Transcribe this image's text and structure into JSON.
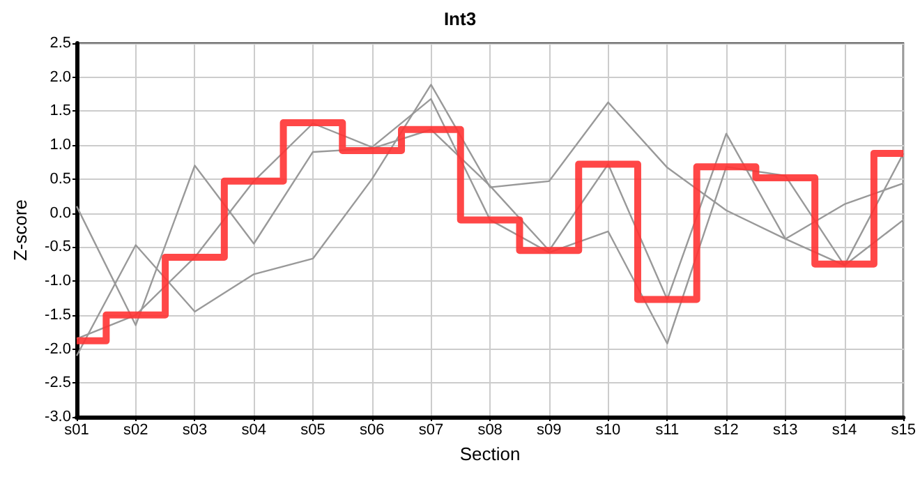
{
  "chart_data": {
    "type": "line",
    "title": "Int3",
    "xlabel": "Section",
    "ylabel": "Z-score",
    "categories": [
      "s01",
      "s02",
      "s03",
      "s04",
      "s05",
      "s06",
      "s07",
      "s08",
      "s09",
      "s10",
      "s11",
      "s12",
      "s13",
      "s14",
      "s15"
    ],
    "series": [
      {
        "color": "#999999",
        "values": [
          -2.1,
          -0.47,
          -1.45,
          -0.9,
          -0.67,
          0.5,
          1.89,
          0.38,
          0.47,
          1.63,
          0.67,
          0.04,
          -0.38,
          0.13,
          0.44
        ]
      },
      {
        "color": "#999999",
        "values": [
          0.1,
          -1.65,
          0.7,
          -0.45,
          0.9,
          0.95,
          1.23,
          0.4,
          -0.55,
          0.72,
          -1.27,
          1.17,
          -0.38,
          -0.77,
          -0.1
        ]
      },
      {
        "color": "#999999",
        "values": [
          -1.85,
          -1.5,
          -0.65,
          0.47,
          1.32,
          0.97,
          1.68,
          -0.1,
          -0.58,
          -0.27,
          -1.92,
          0.68,
          0.55,
          -0.77,
          0.88
        ]
      },
      {
        "type": "step",
        "color": "#ff3333",
        "values": [
          -1.88,
          -1.5,
          -0.65,
          0.47,
          1.33,
          0.92,
          1.23,
          -0.1,
          -0.55,
          0.72,
          -1.27,
          0.68,
          0.52,
          -0.75,
          0.88
        ]
      }
    ],
    "ylim": [
      -3,
      2.5
    ],
    "yticks": [
      {
        "value": -3,
        "label": "-3.0"
      },
      -2.5,
      {
        "value": -2,
        "label": "-2.0"
      },
      -1.5,
      {
        "value": -1,
        "label": "-1.0"
      },
      -0.5,
      {
        "value": 0,
        "label": "0.0"
      },
      0.5,
      {
        "value": 1,
        "label": "1.0"
      },
      1.5,
      {
        "value": 2,
        "label": "2.0"
      },
      2.5
    ],
    "grid": true
  }
}
